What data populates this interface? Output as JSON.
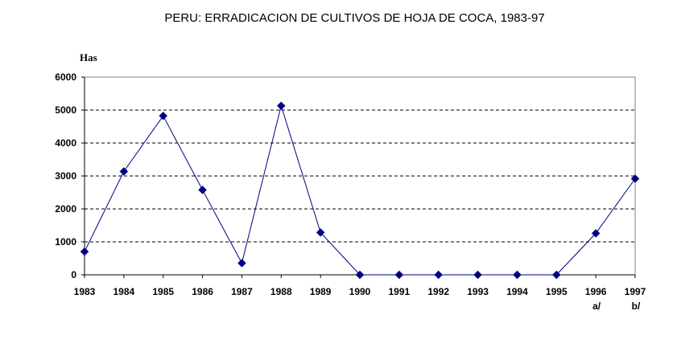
{
  "chart_data": {
    "type": "line",
    "title": "PERU: ERRADICACION DE CULTIVOS DE HOJA DE COCA, 1983-97",
    "ylabel": "Has",
    "xlabel": "",
    "ylim": [
      0,
      6000
    ],
    "yticks": [
      0,
      1000,
      2000,
      3000,
      4000,
      5000,
      6000
    ],
    "grid": "horizontal dashed",
    "categories": [
      "1983",
      "1984",
      "1985",
      "1986",
      "1987",
      "1988",
      "1989",
      "1990",
      "1991",
      "1992",
      "1993",
      "1994",
      "1995",
      "1996",
      "1997"
    ],
    "footnotes": [
      "",
      "",
      "",
      "",
      "",
      "",
      "",
      "",
      "",
      "",
      "",
      "",
      "",
      "a/",
      "b/"
    ],
    "values": [
      703,
      3137,
      4825,
      2577,
      355,
      5130,
      1285,
      0,
      0,
      0,
      0,
      0,
      0,
      1259,
      2918
    ],
    "line_color": "#000080",
    "marker_color": "#000080"
  }
}
